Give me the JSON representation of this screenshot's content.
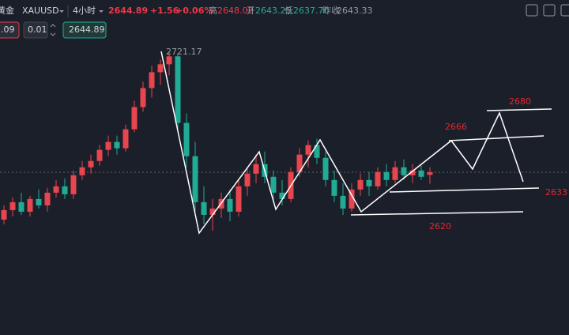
{
  "header": {
    "name": "黄金",
    "symbol": "XAUUSD",
    "interval": "4小时",
    "price": "2644.89",
    "change": "+1.56",
    "change_pct": "+0.06%",
    "high_label": "高",
    "high": "2648.02",
    "open_label": "开",
    "open": "2643.25",
    "low_label": "低",
    "low": "2637.70",
    "prev_label": "昨收",
    "prev": "2643.33"
  },
  "toolbar": {
    "field1": ".09",
    "field2": "0.01",
    "field3": "2644.89"
  },
  "chart_data": {
    "type": "candlestick",
    "up_color": "#e8464e",
    "down_color": "#22ab94",
    "ylim": [
      2544.2,
      2738.6
    ],
    "open": [
      2615,
      2621,
      2626,
      2620,
      2628,
      2624,
      2632,
      2636,
      2631,
      2643,
      2648,
      2652,
      2659,
      2664,
      2660,
      2672,
      2686,
      2698,
      2708,
      2713,
      2718,
      2676,
      2655,
      2626,
      2618,
      2622,
      2628,
      2620,
      2636,
      2644,
      2650,
      2642,
      2632,
      2628,
      2645,
      2656,
      2662,
      2654,
      2640,
      2630,
      2622,
      2634,
      2640,
      2636,
      2645,
      2640,
      2648,
      2643,
      2646,
      2643.25
    ],
    "high": [
      2624,
      2629,
      2632,
      2630,
      2634,
      2635,
      2640,
      2641,
      2646,
      2652,
      2656,
      2662,
      2668,
      2668,
      2675,
      2690,
      2702,
      2712,
      2716,
      2721.17,
      2720,
      2682,
      2664,
      2636,
      2628,
      2632,
      2634,
      2640,
      2648,
      2656,
      2658,
      2646,
      2640,
      2648,
      2660,
      2665,
      2666,
      2658,
      2646,
      2638,
      2638,
      2644,
      2645,
      2648,
      2650,
      2652,
      2653,
      2650,
      2649,
      2648.02
    ],
    "low": [
      2612,
      2617,
      2618,
      2617,
      2622,
      2620,
      2629,
      2628,
      2628,
      2640,
      2644,
      2649,
      2655,
      2656,
      2658,
      2670,
      2683,
      2692,
      2700,
      2706,
      2670,
      2648,
      2620,
      2612,
      2608,
      2616,
      2614,
      2617,
      2630,
      2638,
      2638,
      2626,
      2624,
      2626,
      2642,
      2648,
      2650,
      2636,
      2626,
      2618,
      2620,
      2630,
      2630,
      2634,
      2636,
      2638,
      2640,
      2638,
      2640,
      2637.7
    ],
    "close": [
      2621,
      2626,
      2620,
      2628,
      2624,
      2632,
      2636,
      2631,
      2643,
      2648,
      2652,
      2659,
      2664,
      2660,
      2672,
      2686,
      2698,
      2708,
      2713,
      2718,
      2676,
      2655,
      2626,
      2618,
      2622,
      2628,
      2620,
      2636,
      2644,
      2650,
      2642,
      2632,
      2628,
      2645,
      2656,
      2662,
      2654,
      2640,
      2630,
      2622,
      2634,
      2640,
      2636,
      2645,
      2640,
      2648,
      2643,
      2646,
      2642,
      2644.89
    ],
    "annotations": [
      "2721.17",
      "2680",
      "2666",
      "2633",
      "2620"
    ]
  }
}
